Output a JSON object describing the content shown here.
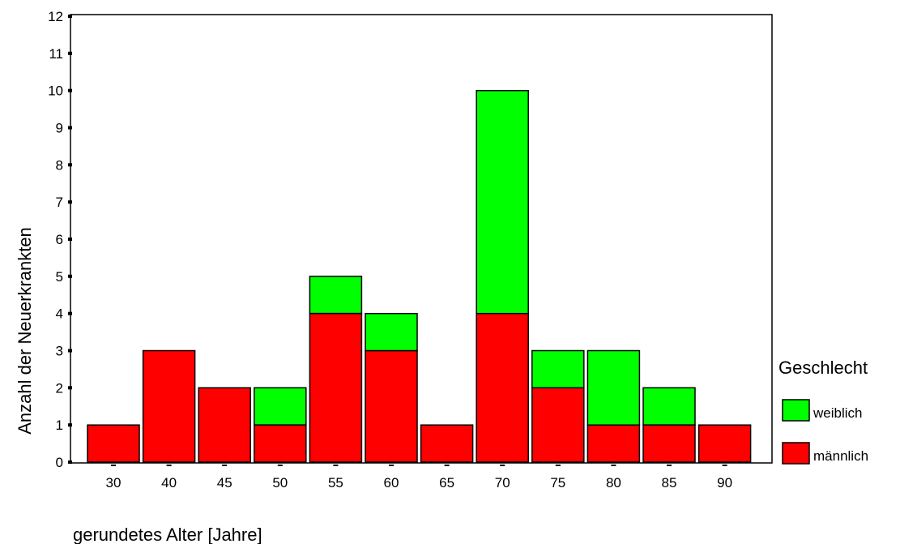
{
  "chart_data": {
    "type": "bar",
    "stacked": true,
    "categories": [
      "30",
      "40",
      "45",
      "50",
      "55",
      "60",
      "65",
      "70",
      "75",
      "80",
      "85",
      "90"
    ],
    "series": [
      {
        "name": "männlich",
        "color": "#ff0000",
        "values": [
          1,
          3,
          2,
          1,
          4,
          3,
          1,
          4,
          2,
          1,
          1,
          1
        ]
      },
      {
        "name": "weiblich",
        "color": "#00ff00",
        "values": [
          0,
          0,
          0,
          1,
          1,
          1,
          0,
          6,
          1,
          2,
          1,
          0
        ]
      }
    ],
    "ylim": [
      0,
      12
    ],
    "yticks": [
      "0",
      "1",
      "2",
      "3",
      "4",
      "5",
      "6",
      "7",
      "8",
      "9",
      "10",
      "11",
      "12"
    ],
    "xlabel": "gerundetes Alter [Jahre]",
    "ylabel": "Anzahl der Neuerkrankten",
    "grid": false,
    "legend": {
      "title": "Geschlecht",
      "position": "right",
      "entries": [
        {
          "label": "weiblich",
          "color": "#00ff00"
        },
        {
          "label": "männlich",
          "color": "#ff0000"
        }
      ]
    }
  }
}
